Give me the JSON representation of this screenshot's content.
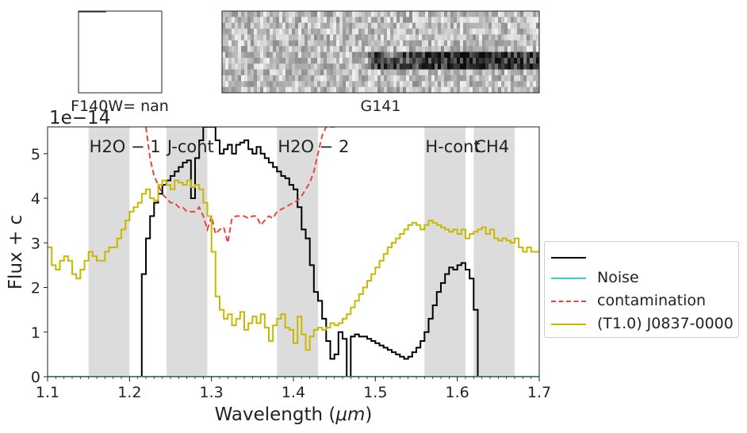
{
  "colors": {
    "spectrum": "#000000",
    "noise": "#40c9c4",
    "contamination": "#e8453c",
    "template": "#c8b800",
    "band": "#dcdcdc"
  },
  "thumbnails": {
    "direct_label": "F140W= nan",
    "grism_label": "G141"
  },
  "chart_data": {
    "type": "line",
    "xlabel": "Wavelength ($\\mu m$)",
    "ylabel": "Flux + c",
    "offset_label": "1e−14",
    "xlim": [
      1.1,
      1.7
    ],
    "ylim": [
      0,
      5.6
    ],
    "xticks": [
      "1.1",
      "1.2",
      "1.3",
      "1.4",
      "1.5",
      "1.6",
      "1.7"
    ],
    "yticks": [
      "0",
      "1",
      "2",
      "3",
      "4",
      "5"
    ],
    "grid": false,
    "bands": [
      {
        "label": "H2O − 1",
        "sub": "2",
        "x0": 1.15,
        "x1": 1.2
      },
      {
        "label": "J-cont",
        "x0": 1.245,
        "x1": 1.295
      },
      {
        "label": "H2O − 2",
        "sub": "2",
        "x0": 1.38,
        "x1": 1.43
      },
      {
        "label": "H-cont",
        "x0": 1.56,
        "x1": 1.61
      },
      {
        "label": "CH4",
        "sub": "4",
        "x0": 1.62,
        "x1": 1.67
      }
    ],
    "legend_position": "center-right",
    "legend_labels": [
      "",
      "Noise",
      "contamination",
      "(T1.0) J0837-0000"
    ],
    "series": [
      {
        "name": "",
        "style": "steps",
        "x": [
          1.1,
          1.2,
          1.205,
          1.21,
          1.215,
          1.22,
          1.225,
          1.23,
          1.235,
          1.24,
          1.245,
          1.25,
          1.255,
          1.26,
          1.265,
          1.27,
          1.275,
          1.28,
          1.285,
          1.29,
          1.295,
          1.3,
          1.305,
          1.31,
          1.315,
          1.32,
          1.325,
          1.33,
          1.335,
          1.34,
          1.345,
          1.35,
          1.355,
          1.36,
          1.365,
          1.37,
          1.375,
          1.38,
          1.385,
          1.39,
          1.395,
          1.4,
          1.405,
          1.41,
          1.415,
          1.42,
          1.425,
          1.43,
          1.435,
          1.44,
          1.445,
          1.45,
          1.455,
          1.46,
          1.465,
          1.47,
          1.475,
          1.48,
          1.485,
          1.49,
          1.495,
          1.5,
          1.505,
          1.51,
          1.515,
          1.52,
          1.525,
          1.53,
          1.535,
          1.54,
          1.545,
          1.55,
          1.555,
          1.56,
          1.565,
          1.57,
          1.575,
          1.58,
          1.585,
          1.59,
          1.595,
          1.6,
          1.605,
          1.61,
          1.615,
          1.62,
          1.625,
          1.63,
          1.635,
          1.64,
          1.645,
          1.65,
          1.655,
          1.66,
          1.665
        ],
        "y": [
          -0.5,
          -0.5,
          -0.5,
          0.0,
          2.3,
          3.1,
          3.6,
          3.9,
          4.1,
          4.3,
          4.4,
          4.5,
          4.6,
          4.7,
          4.8,
          4.85,
          4.0,
          4.9,
          5.3,
          5.6,
          5.6,
          5.6,
          5.3,
          5.0,
          5.1,
          5.2,
          5.0,
          5.2,
          5.25,
          5.3,
          5.1,
          5.0,
          5.15,
          5.0,
          4.9,
          4.8,
          4.7,
          4.6,
          4.5,
          4.45,
          4.3,
          4.2,
          3.8,
          3.3,
          3.1,
          2.5,
          1.9,
          1.7,
          1.3,
          0.8,
          0.4,
          0.5,
          1.0,
          0.85,
          -0.5,
          0.9,
          0.95,
          0.9,
          0.9,
          0.85,
          0.8,
          0.75,
          0.7,
          0.65,
          0.6,
          0.55,
          0.5,
          0.45,
          0.4,
          0.45,
          0.55,
          0.65,
          0.8,
          1.0,
          1.3,
          1.6,
          1.9,
          2.1,
          2.3,
          2.45,
          2.4,
          2.5,
          2.55,
          2.4,
          2.2,
          1.5,
          -0.5,
          -0.5,
          -0.5,
          -0.5,
          -0.5,
          -0.5,
          -0.5,
          -0.5,
          -0.5
        ]
      },
      {
        "name": "Noise",
        "style": "line",
        "x": [
          1.1,
          1.7
        ],
        "y": [
          0.0,
          0.0
        ]
      },
      {
        "name": "contamination",
        "style": "dashed",
        "x": [
          1.22,
          1.225,
          1.23,
          1.235,
          1.24,
          1.245,
          1.25,
          1.255,
          1.26,
          1.265,
          1.27,
          1.275,
          1.28,
          1.285,
          1.29,
          1.295,
          1.3,
          1.305,
          1.31,
          1.315,
          1.32,
          1.325,
          1.33,
          1.335,
          1.34,
          1.345,
          1.35,
          1.355,
          1.36,
          1.365,
          1.37,
          1.375,
          1.38,
          1.385,
          1.39,
          1.395,
          1.4,
          1.405,
          1.41,
          1.415,
          1.42,
          1.425,
          1.43,
          1.435,
          1.44,
          1.445,
          1.45
        ],
        "y": [
          5.6,
          4.9,
          4.5,
          4.3,
          4.1,
          4.0,
          3.9,
          3.9,
          3.8,
          3.8,
          3.7,
          3.7,
          3.7,
          3.8,
          3.6,
          3.3,
          3.6,
          3.2,
          3.3,
          3.35,
          3.0,
          3.55,
          3.6,
          3.6,
          3.6,
          3.55,
          3.6,
          3.6,
          3.4,
          3.5,
          3.6,
          3.55,
          3.7,
          3.75,
          3.8,
          3.85,
          3.9,
          3.95,
          4.05,
          4.2,
          4.35,
          4.6,
          5.0,
          5.4,
          5.6,
          5.6,
          5.6
        ]
      },
      {
        "name": "(T1.0) J0837-0000",
        "style": "steps",
        "x": [
          1.1,
          1.105,
          1.11,
          1.115,
          1.12,
          1.125,
          1.13,
          1.135,
          1.14,
          1.145,
          1.15,
          1.155,
          1.16,
          1.165,
          1.17,
          1.175,
          1.18,
          1.185,
          1.19,
          1.195,
          1.2,
          1.205,
          1.21,
          1.215,
          1.22,
          1.225,
          1.23,
          1.235,
          1.24,
          1.245,
          1.25,
          1.255,
          1.26,
          1.265,
          1.27,
          1.275,
          1.28,
          1.285,
          1.29,
          1.295,
          1.3,
          1.305,
          1.31,
          1.315,
          1.32,
          1.325,
          1.33,
          1.335,
          1.34,
          1.345,
          1.35,
          1.355,
          1.36,
          1.365,
          1.37,
          1.375,
          1.38,
          1.385,
          1.39,
          1.395,
          1.4,
          1.405,
          1.41,
          1.415,
          1.42,
          1.425,
          1.43,
          1.435,
          1.44,
          1.445,
          1.45,
          1.455,
          1.46,
          1.465,
          1.47,
          1.475,
          1.48,
          1.485,
          1.49,
          1.495,
          1.5,
          1.505,
          1.51,
          1.515,
          1.52,
          1.525,
          1.53,
          1.535,
          1.54,
          1.545,
          1.55,
          1.555,
          1.56,
          1.565,
          1.57,
          1.575,
          1.58,
          1.585,
          1.59,
          1.595,
          1.6,
          1.605,
          1.61,
          1.615,
          1.62,
          1.625,
          1.63,
          1.635,
          1.64,
          1.645,
          1.65,
          1.655,
          1.66,
          1.665,
          1.67,
          1.675,
          1.68,
          1.685,
          1.69,
          1.695
        ],
        "y": [
          2.9,
          2.5,
          2.4,
          2.6,
          2.7,
          2.6,
          2.3,
          2.2,
          2.4,
          2.6,
          2.8,
          2.7,
          2.6,
          2.6,
          2.8,
          2.9,
          2.9,
          3.1,
          3.3,
          3.5,
          3.7,
          3.8,
          3.9,
          4.1,
          4.2,
          4.0,
          3.95,
          4.3,
          4.4,
          4.3,
          4.2,
          4.4,
          4.35,
          4.3,
          4.4,
          4.25,
          4.3,
          4.2,
          3.9,
          3.6,
          2.8,
          1.8,
          1.5,
          1.3,
          1.4,
          1.15,
          1.3,
          1.45,
          1.05,
          1.2,
          1.35,
          1.2,
          1.4,
          1.1,
          0.8,
          1.15,
          1.3,
          1.4,
          1.1,
          1.05,
          0.75,
          1.35,
          0.95,
          0.6,
          0.9,
          1.05,
          1.1,
          1.05,
          1.1,
          1.2,
          1.15,
          1.2,
          1.3,
          1.4,
          1.55,
          1.7,
          1.85,
          2.0,
          2.15,
          2.3,
          2.45,
          2.6,
          2.75,
          2.9,
          3.0,
          3.1,
          3.2,
          3.3,
          3.4,
          3.45,
          3.4,
          3.3,
          3.4,
          3.5,
          3.45,
          3.4,
          3.35,
          3.3,
          3.25,
          3.3,
          3.2,
          3.3,
          3.1,
          3.2,
          3.25,
          3.3,
          3.35,
          3.2,
          3.3,
          3.1,
          3.05,
          3.1,
          3.05,
          3.0,
          3.1,
          2.9,
          2.8,
          2.9,
          2.8,
          2.8
        ]
      }
    ]
  }
}
